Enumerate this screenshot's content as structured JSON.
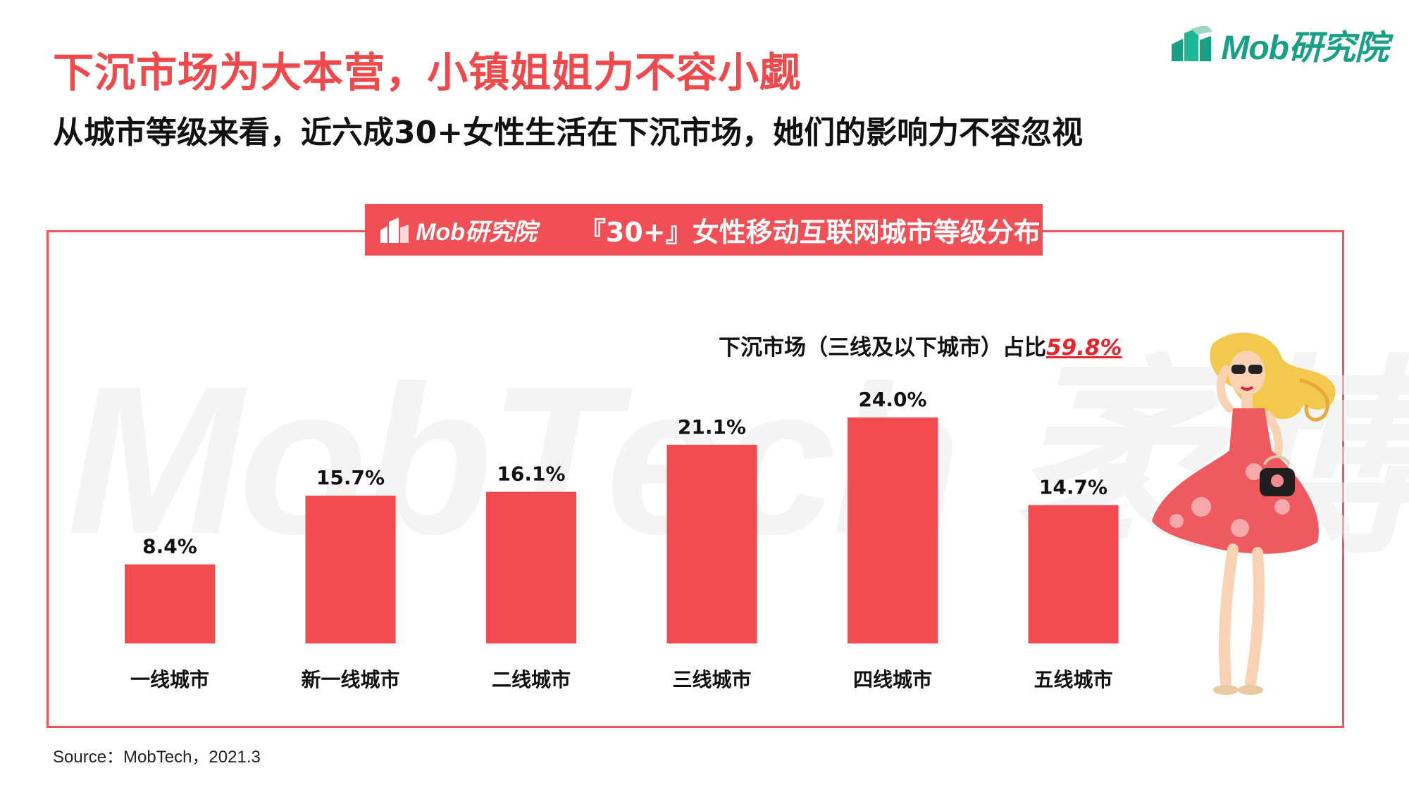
{
  "logo": {
    "text": "Mob研究院"
  },
  "headline": "下沉市场为大本营，小镇姐姐力不容小觑",
  "subhead": "从城市等级来看，近六成30+女性生活在下沉市场，她们的影响力不容忽视",
  "banner": {
    "logo_text": "Mob研究院",
    "title": "『30+』女性移动互联网城市等级分布"
  },
  "watermark": "MobTech 袤博",
  "callout": {
    "prefix": "下沉市场（三线及以下城市）占比",
    "value": "59.8%"
  },
  "source": "Source：MobTech，2021.3",
  "colors": {
    "bar": "#f24b50",
    "accent": "#f0484b",
    "logo": "#17a085"
  },
  "chart_data": {
    "type": "bar",
    "title": "『30+』女性移动互联网城市等级分布",
    "categories": [
      "一线城市",
      "新一线城市",
      "二线城市",
      "三线城市",
      "四线城市",
      "五线城市"
    ],
    "values": [
      8.4,
      15.7,
      16.1,
      21.1,
      24.0,
      14.7
    ],
    "value_labels": [
      "8.4%",
      "15.7%",
      "16.1%",
      "21.1%",
      "24.0%",
      "14.7%"
    ],
    "unit": "%",
    "ylim": [
      0,
      26
    ],
    "grid": false,
    "legend": "none"
  }
}
